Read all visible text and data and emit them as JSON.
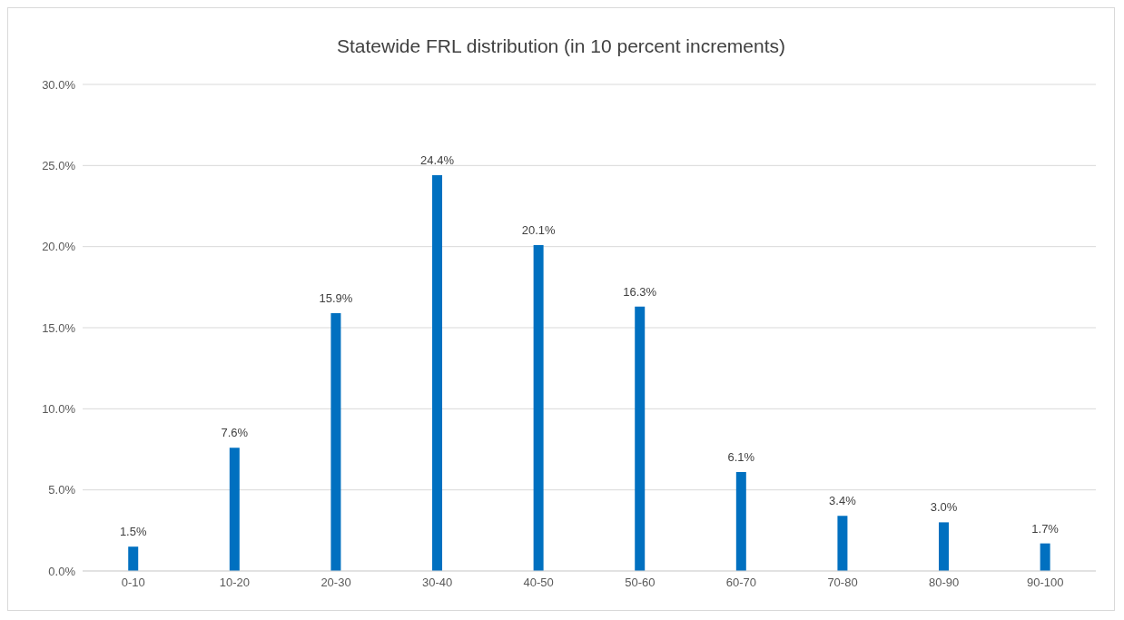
{
  "chart_data": {
    "type": "bar",
    "title": "Statewide FRL distribution (in 10 percent increments)",
    "categories": [
      "0-10",
      "10-20",
      "20-30",
      "30-40",
      "40-50",
      "50-60",
      "60-70",
      "70-80",
      "80-90",
      "90-100"
    ],
    "values": [
      1.5,
      7.6,
      15.9,
      24.4,
      20.1,
      16.3,
      6.1,
      3.4,
      3.0,
      1.7
    ],
    "value_labels": [
      "1.5%",
      "7.6%",
      "15.9%",
      "24.4%",
      "20.1%",
      "16.3%",
      "6.1%",
      "3.4%",
      "3.0%",
      "1.7%"
    ],
    "color": "#0070c0",
    "ylim": [
      0,
      30
    ],
    "yticks": [
      {
        "value": 0,
        "label": "0.0%"
      },
      {
        "value": 5,
        "label": "5.0%"
      },
      {
        "value": 10,
        "label": "10.0%"
      },
      {
        "value": 15,
        "label": "15.0%"
      },
      {
        "value": 20,
        "label": "20.0%"
      },
      {
        "value": 25,
        "label": "25.0%"
      },
      {
        "value": 30,
        "label": "30.0%"
      }
    ],
    "grid": "y"
  }
}
